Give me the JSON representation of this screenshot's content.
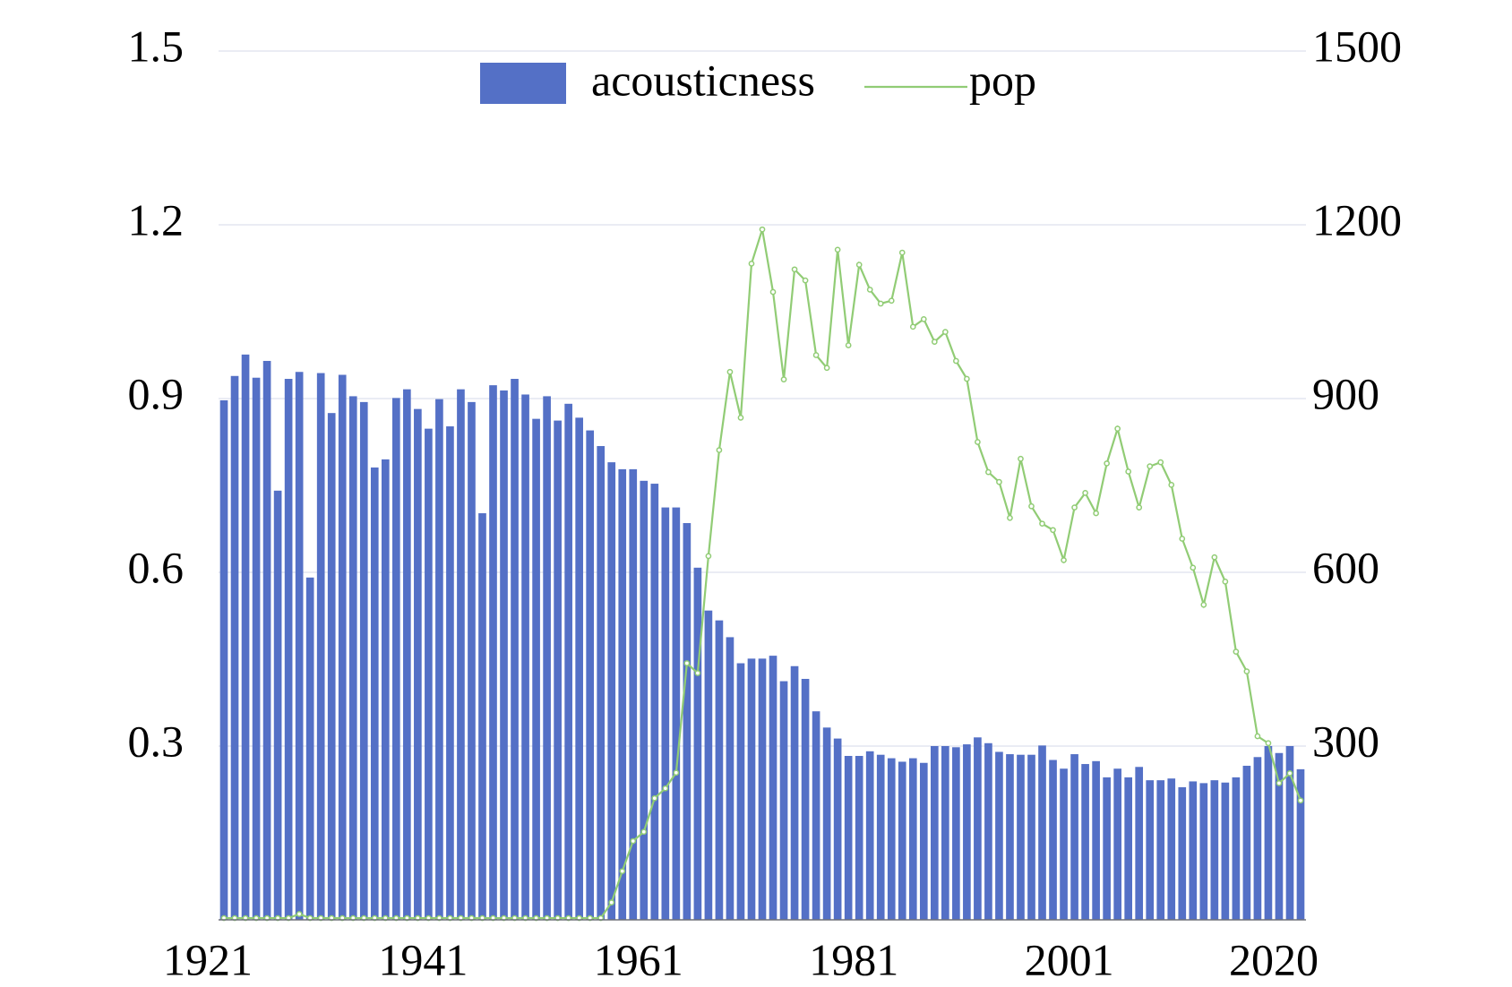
{
  "chart_data": {
    "type": "bar",
    "categories": [
      "1921",
      null,
      null,
      null,
      null,
      null,
      null,
      null,
      null,
      null,
      null,
      null,
      null,
      null,
      null,
      null,
      null,
      null,
      null,
      null,
      "1941",
      null,
      null,
      null,
      null,
      null,
      null,
      null,
      null,
      null,
      null,
      null,
      null,
      null,
      null,
      null,
      null,
      null,
      null,
      null,
      "1961",
      null,
      null,
      null,
      null,
      null,
      null,
      null,
      null,
      null,
      null,
      null,
      null,
      null,
      null,
      null,
      null,
      null,
      null,
      null,
      "1981",
      null,
      null,
      null,
      null,
      null,
      null,
      null,
      null,
      null,
      null,
      null,
      null,
      null,
      null,
      null,
      null,
      null,
      null,
      null,
      "2001",
      null,
      null,
      null,
      null,
      null,
      null,
      null,
      null,
      null,
      null,
      null,
      null,
      null,
      null,
      null,
      null,
      null,
      null,
      "2020",
      null
    ],
    "series": [
      {
        "name": "acousticness",
        "type": "bar",
        "color": "#5470c6",
        "values": [
          0.897,
          0.939,
          0.976,
          0.936,
          0.965,
          0.741,
          0.934,
          0.946,
          0.591,
          0.944,
          0.875,
          0.941,
          0.904,
          0.894,
          0.781,
          0.795,
          0.901,
          0.916,
          0.882,
          0.848,
          0.899,
          0.852,
          0.916,
          0.894,
          0.702,
          0.923,
          0.914,
          0.934,
          0.907,
          0.865,
          0.904,
          0.862,
          0.891,
          0.867,
          0.845,
          0.818,
          0.79,
          0.778,
          0.778,
          0.758,
          0.753,
          0.712,
          0.712,
          0.685,
          0.608,
          0.534,
          0.517,
          0.488,
          0.443,
          0.451,
          0.451,
          0.456,
          0.412,
          0.438,
          0.416,
          0.36,
          0.332,
          0.313,
          0.283,
          0.283,
          0.291,
          0.285,
          0.279,
          0.273,
          0.279,
          0.271,
          0.3,
          0.3,
          0.298,
          0.303,
          0.315,
          0.305,
          0.29,
          0.286,
          0.285,
          0.285,
          0.301,
          0.276,
          0.261,
          0.286,
          0.269,
          0.274,
          0.246,
          0.261,
          0.246,
          0.264,
          0.241,
          0.241,
          0.244,
          0.229,
          0.239,
          0.236,
          0.241,
          0.237,
          0.246,
          0.266,
          0.281,
          0.3,
          0.288,
          0.3,
          0.26
        ]
      },
      {
        "name": "pop",
        "type": "line",
        "axis": "y2",
        "color": "#91cc75",
        "values": [
          3,
          3,
          3,
          3,
          3,
          3,
          3,
          10,
          3,
          3,
          3,
          3,
          3,
          3,
          3,
          3,
          3,
          3,
          3,
          3,
          3,
          3,
          3,
          3,
          3,
          3,
          3,
          3,
          3,
          3,
          3,
          3,
          3,
          3,
          3,
          3,
          30,
          84,
          136,
          152,
          210,
          227,
          254,
          443,
          426,
          628,
          811,
          946,
          867,
          1133,
          1192,
          1084,
          933,
          1123,
          1104,
          975,
          953,
          1157,
          992,
          1131,
          1088,
          1064,
          1069,
          1152,
          1024,
          1037,
          998,
          1015,
          965,
          934,
          825,
          773,
          756,
          694,
          796,
          714,
          684,
          673,
          621,
          712,
          737,
          702,
          788,
          848,
          774,
          712,
          783,
          790,
          751,
          658,
          608,
          544,
          626,
          584,
          463,
          429,
          317,
          305,
          236,
          253,
          206
        ]
      }
    ],
    "ylim": [
      0,
      1.5
    ],
    "yticks": [
      0.3,
      0.6,
      0.9,
      1.2,
      1.5
    ],
    "y2lim": [
      0,
      1500
    ],
    "y2ticks": [
      300,
      600,
      900,
      1200,
      1500
    ],
    "grid": true,
    "legend": "top"
  }
}
